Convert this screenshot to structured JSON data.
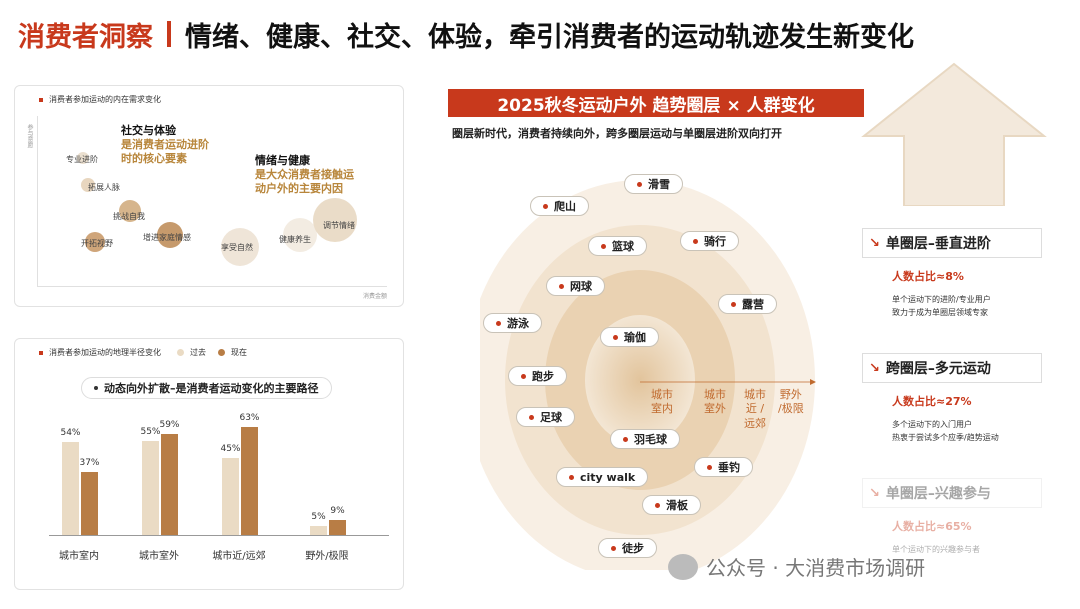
{
  "header": {
    "brand": "消费者洞察",
    "title": "情绪、健康、社交、体验，牵引消费者的运动轨迹发生新变化"
  },
  "needs_chart": {
    "title": "消费者参加运动的内在需求变化",
    "y_axis": "参与意愿",
    "x_axis": "消费金额",
    "callouts": [
      {
        "head": "社交与体验",
        "sub1": "是消费者运动进阶",
        "sub2": "时的核心要素"
      },
      {
        "head": "情绪与健康",
        "sub1": "是大众消费者接触运",
        "sub2": "动户外的主要内因"
      }
    ],
    "bubbles": [
      "专业进阶",
      "拓展人脉",
      "挑战自我",
      "开拓视野",
      "增进家庭情感",
      "享受自然",
      "健康养生",
      "调节情绪"
    ]
  },
  "radius_chart": {
    "title": "消费者参加运动的地理半径变化",
    "legend_past": "过去",
    "legend_now": "现在",
    "headline": "动态向外扩散–是消费者运动变化的主要路径",
    "colors": {
      "past": "#eadbc4",
      "now": "#b87d45"
    },
    "chart_data": {
      "type": "bar",
      "categories": [
        "城市室内",
        "城市室外",
        "城市近/远郊",
        "野外/极限"
      ],
      "series": [
        {
          "name": "过去",
          "values": [
            54,
            55,
            45,
            5
          ]
        },
        {
          "name": "现在",
          "values": [
            37,
            59,
            63,
            9
          ]
        }
      ],
      "value_labels": {
        "past": [
          "54%",
          "55%",
          "45%",
          "5%"
        ],
        "now": [
          "37%",
          "59%",
          "63%",
          "9%"
        ]
      },
      "ylim": [
        0,
        70
      ]
    }
  },
  "center": {
    "banner": "2025秋冬运动户外 趋势圈层 × 人群变化",
    "subtitle": "圈层新时代，消费者持续向外，跨多圈层运动与单圈层进阶双向打开",
    "sports": [
      "滑雪",
      "爬山",
      "篮球",
      "骑行",
      "网球",
      "露营",
      "游泳",
      "瑜伽",
      "跑步",
      "足球",
      "羽毛球",
      "垂钓",
      "city walk",
      "滑板",
      "徒步"
    ],
    "ring_labels": [
      "城市\n室内",
      "城市\n室外",
      "城市\n近 /\n远郊",
      "野外\n/极限"
    ]
  },
  "tiers": [
    {
      "title": "单圈层–垂直进阶",
      "pct": "人数占比≈8%",
      "desc1": "单个运动下的进阶/专业用户",
      "desc2": "致力于成为单圈层领域专家"
    },
    {
      "title": "跨圈层–多元运动",
      "pct": "人数占比≈27%",
      "desc1": "多个运动下的入门用户",
      "desc2": "热衷于尝试多个应季/趋势运动"
    },
    {
      "title": "单圈层–兴趣参与",
      "pct": "人数占比≈65%",
      "desc1": "单个运动下的兴趣参与者",
      "desc2": ""
    }
  ],
  "watermark": "公众号 · 大消费市场调研"
}
